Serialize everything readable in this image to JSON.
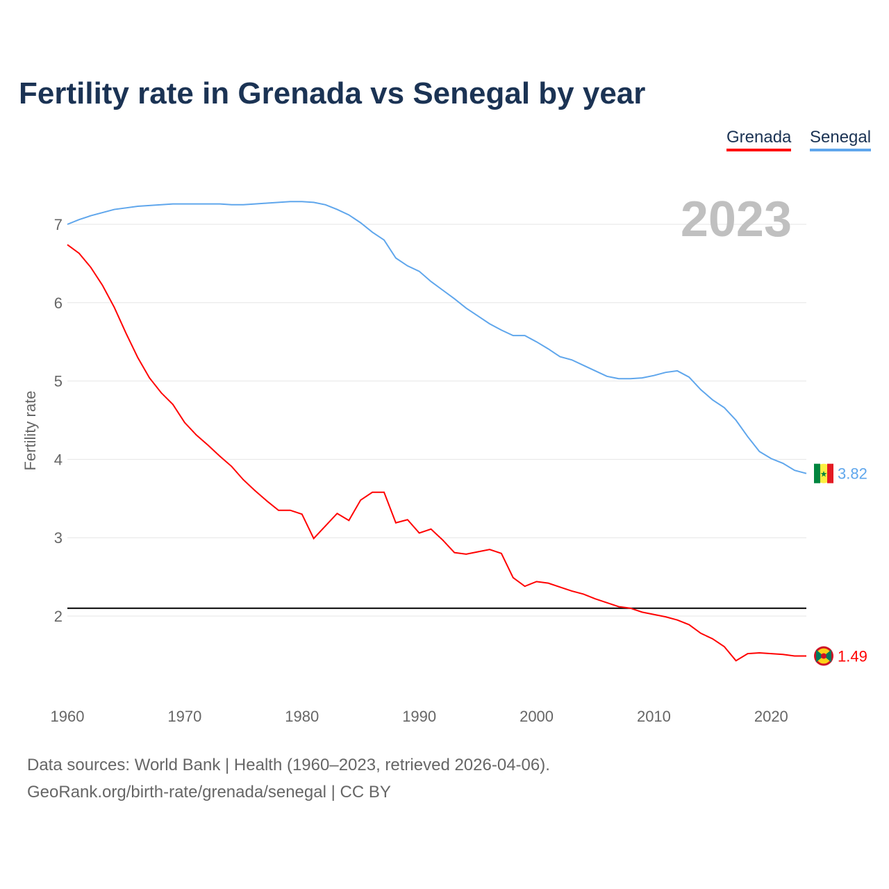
{
  "title": "Fertility rate in Grenada vs Senegal by year",
  "footer": {
    "line1": "Data sources: World Bank | Health (1960–2023, retrieved 2026-04-06).",
    "line2": "GeoRank.org/birth-rate/grenada/senegal | CC BY"
  },
  "chart_data": {
    "type": "line",
    "title": "Fertility rate in Grenada vs Senegal by year",
    "ylabel": "Fertility rate",
    "xlabel": "",
    "year_label": "2023",
    "xlim": [
      1960,
      2023
    ],
    "ylim": [
      1,
      7.5
    ],
    "x_ticks": [
      "1960",
      "1970",
      "1980",
      "1990",
      "2000",
      "2010",
      "2020"
    ],
    "y_ticks": [
      "2",
      "3",
      "4",
      "5",
      "6",
      "7"
    ],
    "reference_line": 2.1,
    "legend_position": "top-right",
    "x": [
      1960,
      1961,
      1962,
      1963,
      1964,
      1965,
      1966,
      1967,
      1968,
      1969,
      1970,
      1971,
      1972,
      1973,
      1974,
      1975,
      1976,
      1977,
      1978,
      1979,
      1980,
      1981,
      1982,
      1983,
      1984,
      1985,
      1986,
      1987,
      1988,
      1989,
      1990,
      1991,
      1992,
      1993,
      1994,
      1995,
      1996,
      1997,
      1998,
      1999,
      2000,
      2001,
      2002,
      2003,
      2004,
      2005,
      2006,
      2007,
      2008,
      2009,
      2010,
      2011,
      2012,
      2013,
      2014,
      2015,
      2016,
      2017,
      2018,
      2019,
      2020,
      2021,
      2022,
      2023
    ],
    "series": [
      {
        "name": "Grenada",
        "color": "#ff0000",
        "end_label": "1.49",
        "values": [
          6.74,
          6.63,
          6.45,
          6.22,
          5.94,
          5.61,
          5.3,
          5.04,
          4.85,
          4.7,
          4.47,
          4.31,
          4.18,
          4.04,
          3.91,
          3.74,
          3.6,
          3.47,
          3.35,
          3.35,
          3.3,
          2.99,
          3.15,
          3.31,
          3.22,
          3.48,
          3.58,
          3.58,
          3.19,
          3.23,
          3.06,
          3.11,
          2.97,
          2.81,
          2.79,
          2.82,
          2.85,
          2.8,
          2.49,
          2.38,
          2.44,
          2.42,
          2.37,
          2.32,
          2.28,
          2.22,
          2.17,
          2.12,
          2.1,
          2.05,
          2.02,
          1.99,
          1.95,
          1.89,
          1.78,
          1.71,
          1.61,
          1.43,
          1.52,
          1.53,
          1.52,
          1.51,
          1.49,
          1.49
        ]
      },
      {
        "name": "Senegal",
        "color": "#5fa6ec",
        "end_label": "3.82",
        "values": [
          7.0,
          7.06,
          7.11,
          7.15,
          7.19,
          7.21,
          7.23,
          7.24,
          7.25,
          7.26,
          7.26,
          7.26,
          7.26,
          7.26,
          7.25,
          7.25,
          7.26,
          7.27,
          7.28,
          7.29,
          7.29,
          7.28,
          7.25,
          7.19,
          7.12,
          7.02,
          6.9,
          6.8,
          6.57,
          6.47,
          6.4,
          6.27,
          6.16,
          6.05,
          5.93,
          5.83,
          5.73,
          5.65,
          5.58,
          5.58,
          5.5,
          5.41,
          5.31,
          5.27,
          5.2,
          5.13,
          5.06,
          5.03,
          5.03,
          5.04,
          5.07,
          5.11,
          5.13,
          5.05,
          4.89,
          4.76,
          4.66,
          4.5,
          4.29,
          4.1,
          4.01,
          3.95,
          3.86,
          3.82
        ]
      }
    ]
  }
}
